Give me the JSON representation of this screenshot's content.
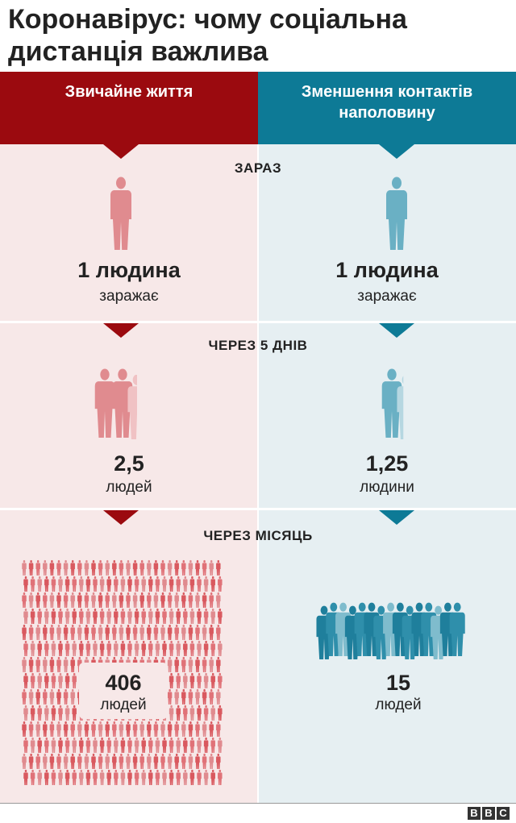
{
  "title": "Коронавірус: чому соціальна дистанція важлива",
  "columns": {
    "left": "Звичайне життя",
    "right": "Зменшення контактів наполовину"
  },
  "colors": {
    "red_dark": "#9b0a0f",
    "blue_dark": "#0d7a96",
    "red_person": "#e08b8f",
    "blue_person": "#6ab0c4"
  },
  "sections": [
    {
      "label": "ЗАРАЗ",
      "left": {
        "value": "1 людина",
        "text": "заражає"
      },
      "right": {
        "value": "1 людина",
        "text": "заражає"
      }
    },
    {
      "label": "ЧЕРЕЗ 5 ДНІВ",
      "left": {
        "value": "2,5",
        "text": "людей"
      },
      "right": {
        "value": "1,25",
        "text": "людини"
      }
    },
    {
      "label": "ЧЕРЕЗ МІСЯЦЬ",
      "left": {
        "value": "406",
        "text": "людей"
      },
      "right": {
        "value": "15",
        "text": "людей"
      }
    }
  ],
  "people_counts": {
    "now": {
      "left": 1,
      "right": 1
    },
    "five_days": {
      "left": 2.5,
      "right": 1.25
    },
    "month": {
      "left": 406,
      "right": 15
    }
  },
  "brand": [
    "B",
    "B",
    "C"
  ]
}
